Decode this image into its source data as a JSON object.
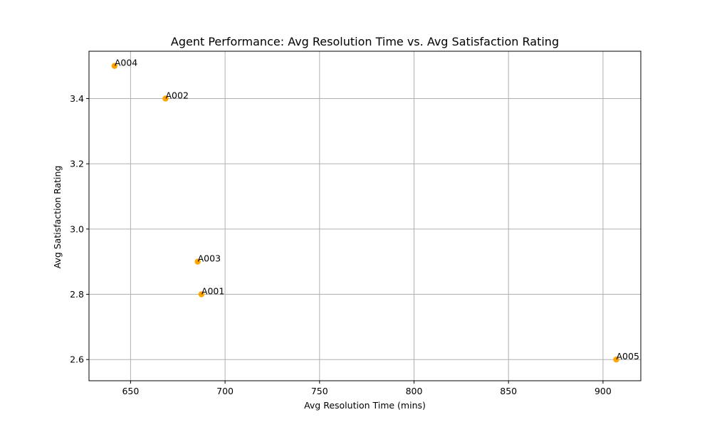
{
  "chart_data": {
    "type": "scatter",
    "title": "Agent Performance: Avg Resolution Time vs. Avg Satisfaction Rating",
    "xlabel": "Avg Resolution Time (mins)",
    "ylabel": "Avg Satisfaction Rating",
    "xlim": [
      628,
      920
    ],
    "ylim": [
      2.535,
      3.545
    ],
    "xticks": [
      650,
      700,
      750,
      800,
      850,
      900
    ],
    "yticks": [
      2.6,
      2.8,
      3.0,
      3.2,
      3.4
    ],
    "xtick_labels": [
      "650",
      "700",
      "750",
      "800",
      "850",
      "900"
    ],
    "ytick_labels": [
      "2.6",
      "2.8",
      "3.0",
      "3.2",
      "3.4"
    ],
    "grid": true,
    "marker_color": "#ffa500",
    "points": [
      {
        "label": "A004",
        "x": 641.5,
        "y": 3.5
      },
      {
        "label": "A002",
        "x": 668.5,
        "y": 3.4
      },
      {
        "label": "A003",
        "x": 685.5,
        "y": 2.9
      },
      {
        "label": "A001",
        "x": 687.5,
        "y": 2.8
      },
      {
        "label": "A005",
        "x": 907,
        "y": 2.6
      }
    ]
  }
}
